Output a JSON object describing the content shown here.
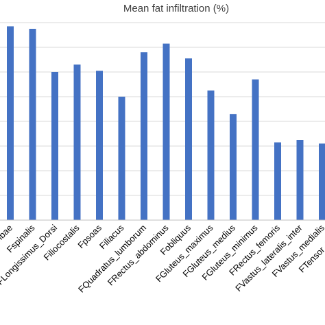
{
  "chart_data": {
    "type": "bar",
    "title": "Mean fat infiltration (%)",
    "categories": [
      "FMultifidus_Lumbae",
      "Fspinalis",
      "FLongissimus_Dorsi",
      "Filiocostalis",
      "Fpsoas",
      "Filiacus",
      "FQuadratus_lumborum",
      "FRectus_abdominus",
      "Fobliquus",
      "FGluteus_maximus",
      "FGluteus_medius",
      "FGluteus_minimus",
      "FRectus_femoris",
      "FVastus_lateralis_inter",
      "FVastus_medialis",
      "FTensor_Fascia"
    ],
    "values": [
      7.85,
      7.75,
      6.0,
      6.3,
      6.05,
      5.0,
      6.8,
      7.15,
      6.55,
      5.25,
      4.3,
      5.7,
      3.15,
      3.25,
      3.1,
      3.0
    ],
    "ylim": [
      0,
      8
    ],
    "grid": true,
    "color": "#4472c4",
    "gridColor": "#d9d9d9"
  }
}
